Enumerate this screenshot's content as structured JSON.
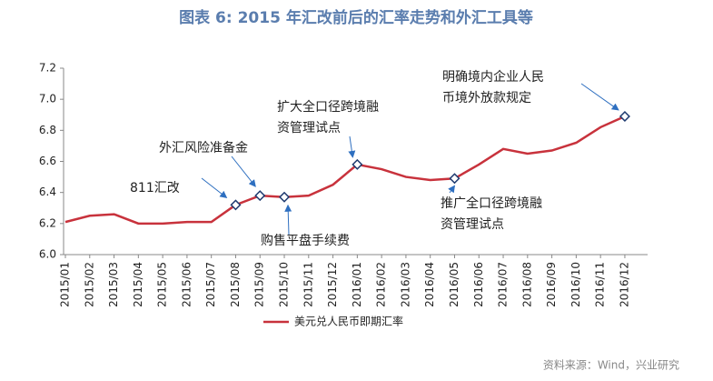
{
  "chart_data": {
    "type": "line",
    "title": "图表 6:  2015 年汇改前后的汇率走势和外汇工具等",
    "categories": [
      "2015/01",
      "2015/02",
      "2015/03",
      "2015/04",
      "2015/05",
      "2015/06",
      "2015/07",
      "2015/08",
      "2015/09",
      "2015/10",
      "2015/11",
      "2015/12",
      "2016/01",
      "2016/02",
      "2016/03",
      "2016/04",
      "2016/05",
      "2016/06",
      "2016/07",
      "2016/08",
      "2016/09",
      "2016/10",
      "2016/11",
      "2016/12"
    ],
    "series": [
      {
        "name": "美元兑人民币即期汇率",
        "color": "#c8323c",
        "values": [
          6.21,
          6.25,
          6.26,
          6.2,
          6.2,
          6.21,
          6.21,
          6.32,
          6.38,
          6.37,
          6.38,
          6.45,
          6.58,
          6.55,
          6.5,
          6.48,
          6.49,
          6.58,
          6.68,
          6.65,
          6.67,
          6.72,
          6.82,
          6.89
        ]
      }
    ],
    "ylim": [
      6.0,
      7.2
    ],
    "yticks": [
      {
        "value": 6.0,
        "label": "6.0"
      },
      6.2,
      6.4,
      6.6,
      6.8,
      {
        "value": 7.0,
        "label": "7.0"
      },
      7.2
    ],
    "annotations": [
      {
        "lines": [
          "811汇改"
        ],
        "x": "2015/08"
      },
      {
        "lines": [
          "外汇风险准备金"
        ],
        "x": "2015/09"
      },
      {
        "lines": [
          "购售平盘手续费"
        ],
        "x": "2015/10"
      },
      {
        "lines": [
          "扩大全口径跨境融",
          "资管理试点"
        ],
        "x": "2016/01"
      },
      {
        "lines": [
          "推广全口径跨境融",
          "资管理试点"
        ],
        "x": "2016/05"
      },
      {
        "lines": [
          "明确境内企业人民",
          "币境外放款规定"
        ],
        "x": "2016/12"
      }
    ],
    "source": "资料来源：Wind，兴业研究"
  }
}
